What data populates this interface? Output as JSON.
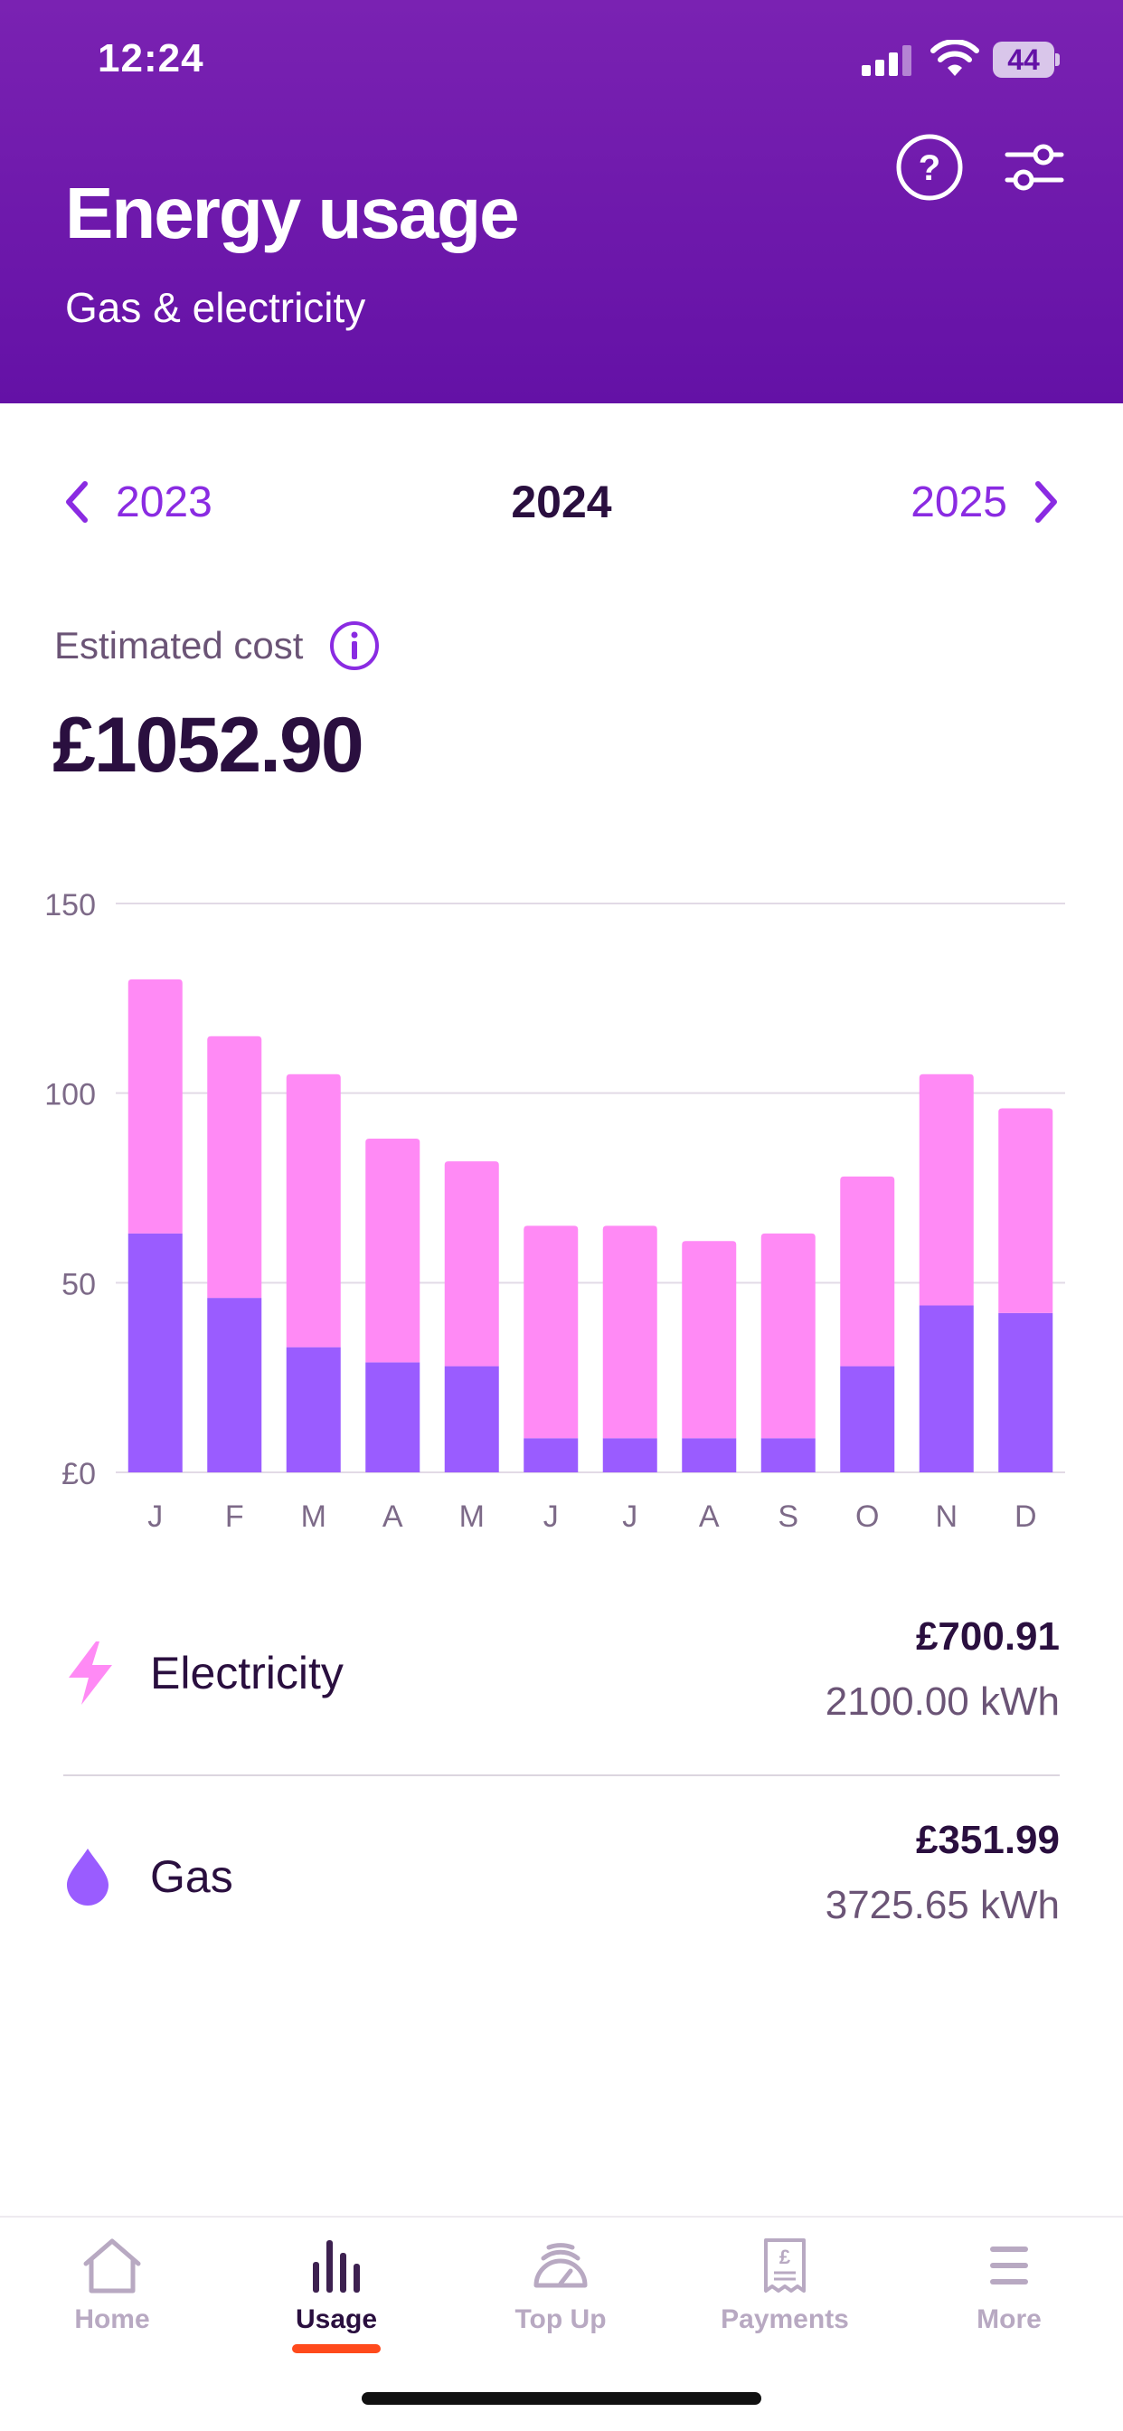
{
  "status_bar": {
    "time": "12:24",
    "battery_level": "44"
  },
  "header": {
    "title": "Energy usage",
    "subtitle": "Gas & electricity",
    "help_icon": "question-circle-icon",
    "filter_icon": "sliders-icon"
  },
  "year_nav": {
    "previous": "2023",
    "current": "2024",
    "next": "2025"
  },
  "cost": {
    "label": "Estimated cost",
    "value": "£1052.90"
  },
  "colors": {
    "electricity": "#ff8af5",
    "gas": "#9a5cff",
    "accent": "#8a2be2",
    "header": "#6d16a9",
    "tab_indicator": "#ff4a1c"
  },
  "chart_data": {
    "type": "bar",
    "stacked": true,
    "categories": [
      "J",
      "F",
      "M",
      "A",
      "M",
      "J",
      "J",
      "A",
      "S",
      "O",
      "N",
      "D"
    ],
    "series": [
      {
        "color": "#9a5cff",
        "values": [
          63,
          46,
          33,
          29,
          28,
          9,
          9,
          9,
          9,
          28,
          44,
          42
        ]
      },
      {
        "color": "#ff8af5",
        "values": [
          67,
          69,
          72,
          59,
          54,
          56,
          56,
          52,
          54,
          50,
          61,
          54
        ]
      }
    ],
    "ylim": [
      0,
      150
    ],
    "yticks": [
      "£0",
      "50",
      "100",
      "150"
    ],
    "ytick_values": [
      0,
      50,
      100,
      150
    ],
    "grid": true
  },
  "breakdown": {
    "electricity": {
      "label": "Electricity",
      "amount": "£700.91",
      "usage": "2100.00 kWh",
      "icon": "lightning-icon"
    },
    "gas": {
      "label": "Gas",
      "amount": "£351.99",
      "usage": "3725.65 kWh",
      "icon": "flame-drop-icon"
    }
  },
  "tabs": [
    {
      "label": "Home",
      "icon": "house-icon",
      "active": false
    },
    {
      "label": "Usage",
      "icon": "bar-chart-icon",
      "active": true
    },
    {
      "label": "Top Up",
      "icon": "gauge-icon",
      "active": false
    },
    {
      "label": "Payments",
      "icon": "receipt-icon",
      "active": false
    },
    {
      "label": "More",
      "icon": "menu-icon",
      "active": false
    }
  ]
}
